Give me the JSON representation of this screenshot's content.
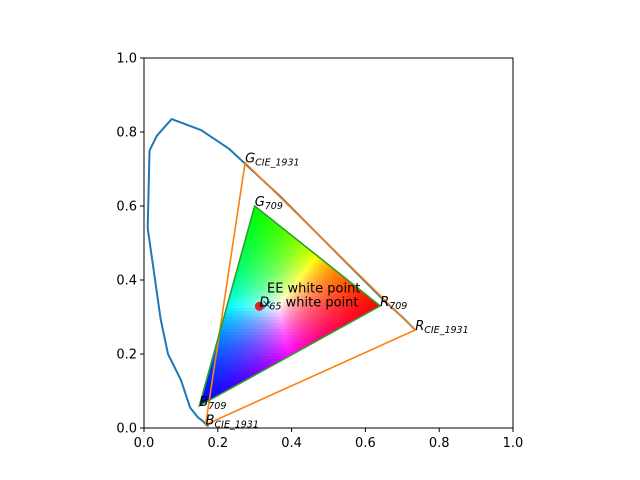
{
  "chart_data": {
    "type": "line",
    "title": "",
    "xlabel": "",
    "ylabel": "",
    "xlim": [
      0,
      1
    ],
    "ylim": [
      0,
      1
    ],
    "xticks": [
      "0.0",
      "0.2",
      "0.4",
      "0.6",
      "0.8",
      "1.0"
    ],
    "yticks": [
      "0.0",
      "0.2",
      "0.4",
      "0.6",
      "0.8",
      "1.0"
    ],
    "grid": false,
    "spectral_locus": {
      "color": "#1f77b4",
      "points": [
        [
          0.175,
          0.005
        ],
        [
          0.17,
          0.008
        ],
        [
          0.16,
          0.018
        ],
        [
          0.145,
          0.03
        ],
        [
          0.125,
          0.055
        ],
        [
          0.1,
          0.13
        ],
        [
          0.065,
          0.2
        ],
        [
          0.045,
          0.295
        ],
        [
          0.01,
          0.54
        ],
        [
          0.015,
          0.75
        ],
        [
          0.035,
          0.79
        ],
        [
          0.075,
          0.835
        ],
        [
          0.155,
          0.805
        ],
        [
          0.23,
          0.755
        ],
        [
          0.3,
          0.69
        ],
        [
          0.37,
          0.625
        ],
        [
          0.44,
          0.555
        ],
        [
          0.51,
          0.485
        ],
        [
          0.58,
          0.415
        ],
        [
          0.65,
          0.345
        ],
        [
          0.7,
          0.3
        ],
        [
          0.735,
          0.265
        ]
      ]
    },
    "gamut_cie1931": {
      "color": "#ff7f0e",
      "vertices": [
        [
          0.735,
          0.265
        ],
        [
          0.274,
          0.717
        ],
        [
          0.167,
          0.009
        ]
      ]
    },
    "gamut_709": {
      "color": "#2ca02c",
      "vertices": [
        [
          0.64,
          0.33
        ],
        [
          0.3,
          0.6
        ],
        [
          0.15,
          0.06
        ]
      ]
    },
    "d65_point": {
      "x": 0.3127,
      "y": 0.329,
      "color": "#d62728"
    },
    "ee_point": {
      "x": 0.3333,
      "y": 0.3333,
      "color": "#1f77b4"
    },
    "annotations": [
      {
        "main": "G",
        "sub": "CIE_1931",
        "x": 0.274,
        "y": 0.717
      },
      {
        "main": "G",
        "sub": "709",
        "x": 0.3,
        "y": 0.6
      },
      {
        "main": "R",
        "sub": "709",
        "x": 0.64,
        "y": 0.33
      },
      {
        "main": "R",
        "sub": "CIE_1931",
        "x": 0.735,
        "y": 0.265
      },
      {
        "main": "B",
        "sub": "709",
        "x": 0.15,
        "y": 0.06
      },
      {
        "main": "B",
        "sub": "CIE_1931",
        "x": 0.167,
        "y": 0.009
      },
      {
        "main": "D",
        "sub": "65",
        "x": 0.3127,
        "y": 0.329,
        "tail": " white point"
      }
    ],
    "ee_label": "EE white point"
  }
}
